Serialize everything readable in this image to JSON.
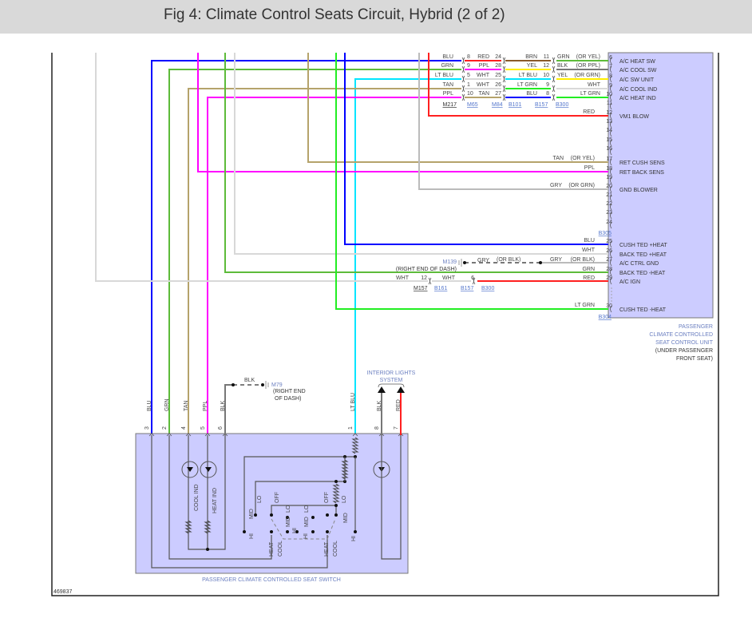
{
  "title": "Fig 4: Climate Control Seats Circuit, Hybrid (2 of 2)",
  "wire_colors": {
    "BLU": "#0000ff",
    "GRN": "#5dbb3a",
    "LT BLU": "#00e5ff",
    "TAN": "#b5a36b",
    "PPL": "#ff00ff",
    "RED": "#ff2020",
    "WHT": "#d8d8d8",
    "GRY": "#bbbbbb",
    "LT GRN": "#22ee22",
    "BLK": "#777777",
    "YEL": "#ffee00",
    "BRN": "#8b5a2b"
  },
  "control_unit": {
    "name": [
      "PASSENGER",
      "CLIMATE CONTROLLED",
      "SEAT CONTROL UNIT"
    ],
    "location": [
      "(UNDER PASSENGER",
      "FRONT SEAT)"
    ],
    "pins": [
      {
        "n": "6",
        "f": "A/C HEAT SW"
      },
      {
        "n": "7",
        "f": "A/C COOL SW"
      },
      {
        "n": "8",
        "f": "A/C SW UNIT"
      },
      {
        "n": "9",
        "f": "A/C COOL IND"
      },
      {
        "n": "10",
        "f": "A/C HEAT IND"
      },
      {
        "n": "11",
        "f": ""
      },
      {
        "n": "12",
        "f": "VM1 BLOW"
      },
      {
        "n": "13",
        "f": ""
      },
      {
        "n": "14",
        "f": ""
      },
      {
        "n": "15",
        "f": ""
      },
      {
        "n": "16",
        "f": ""
      },
      {
        "n": "17",
        "f": "RET CUSH SENS"
      },
      {
        "n": "18",
        "f": "RET BACK SENS"
      },
      {
        "n": "19",
        "f": ""
      },
      {
        "n": "20",
        "f": "GND BLOWER"
      },
      {
        "n": "21",
        "f": ""
      },
      {
        "n": "22",
        "f": ""
      },
      {
        "n": "23",
        "f": ""
      },
      {
        "n": "24",
        "f": ""
      },
      {
        "n": "25",
        "f": "CUSH TED +HEAT"
      },
      {
        "n": "26",
        "f": "BACK TED +HEAT"
      },
      {
        "n": "27",
        "f": "A/C CTRL GND"
      },
      {
        "n": "28",
        "f": "BACK TED -HEAT"
      },
      {
        "n": "29",
        "f": "A/C IGN"
      },
      {
        "n": "30",
        "f": "CUSH TED -HEAT"
      }
    ],
    "connectors": [
      "B305",
      "B304"
    ]
  },
  "harness_rows": [
    [
      "BLU",
      "8",
      "RED",
      "24",
      "BRN",
      "11",
      "GRN",
      "(OR YEL)"
    ],
    [
      "GRN",
      "9",
      "PPL",
      "28",
      "YEL",
      "12",
      "BLK",
      "(OR PPL)"
    ],
    [
      "LT BLU",
      "5",
      "WHT",
      "25",
      "LT BLU",
      "10",
      "YEL",
      "(OR GRN)"
    ],
    [
      "TAN",
      "1",
      "WHT",
      "26",
      "LT GRN",
      "9",
      "WHT"
    ],
    [
      "PPL",
      "10",
      "TAN",
      "27",
      "BLU",
      "8",
      "LT GRN"
    ]
  ],
  "harness_connectors": [
    "M217",
    "M65",
    "M84",
    "B101",
    "B157",
    "B300"
  ],
  "unit_wire_labels": {
    "p12": [
      "RED"
    ],
    "p17": [
      "TAN",
      "(OR YEL)"
    ],
    "p18": [
      "PPL"
    ],
    "p20": [
      "GRY",
      "(OR GRN)"
    ],
    "p25": [
      "BLU"
    ],
    "p26": [
      "WHT"
    ],
    "p27": [
      "GRY",
      "(OR BLK)"
    ],
    "p28": [
      "GRN"
    ],
    "p29": [
      "RED"
    ],
    "p30": [
      "LT GRN"
    ]
  },
  "ground_m139": {
    "id": "M139",
    "location": "(RIGHT END OF DASH)",
    "wire": [
      "GRY",
      "(OR BLK)"
    ]
  },
  "ign_splice": {
    "wire1": "WHT",
    "pin1": "12",
    "wire2": "WHT",
    "pin2": "6",
    "connectors": [
      "M157",
      "B161",
      "B157",
      "B300"
    ]
  },
  "ground_m79": {
    "id": "M79",
    "location": [
      "(RIGHT END",
      "OF DASH)"
    ],
    "wire": "BLK"
  },
  "interior_lights": [
    "INTERIOR LIGHTS",
    "SYSTEM"
  ],
  "switch": {
    "caption": "PASSENGER CLIMATE CONTROLLED SEAT SWITCH",
    "pins": [
      {
        "n": "3",
        "w": "BLU"
      },
      {
        "n": "2",
        "w": "GRN"
      },
      {
        "n": "4",
        "w": "TAN"
      },
      {
        "n": "5",
        "w": "PPL"
      },
      {
        "n": "6",
        "w": "BLK"
      },
      {
        "n": "1",
        "w": "LT BLU"
      },
      {
        "n": "8",
        "w": "BLK"
      },
      {
        "n": "7",
        "w": "RED"
      }
    ],
    "indicators": [
      "COOL IND",
      "HEAT IND"
    ],
    "positions": [
      "HI",
      "MID",
      "LO",
      "OFF",
      "LO",
      "MID",
      "HI",
      "MID",
      "LO",
      "OFF",
      "LO",
      "MID",
      "HI",
      "HI"
    ],
    "modes": [
      "HEAT",
      "COOL",
      "HEAT",
      "COOL"
    ]
  },
  "figure_id": "469837"
}
